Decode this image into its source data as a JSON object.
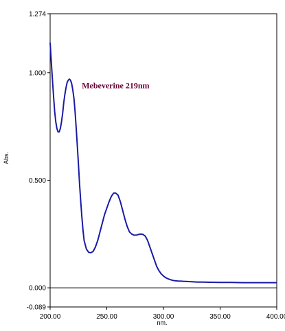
{
  "chart_data": {
    "type": "line",
    "title": "",
    "xlabel": "nm.",
    "ylabel": "Abs.",
    "xlim": [
      200.0,
      400.0
    ],
    "ylim": [
      -0.089,
      1.274
    ],
    "x_tick_labels": [
      "200.00",
      "250.00",
      "300.00",
      "350.00",
      "400.00"
    ],
    "x_ticks": [
      200,
      250,
      300,
      350,
      400
    ],
    "y_tick_labels": [
      "1.274",
      "1.000",
      "0.500",
      "0.000",
      "-0.089"
    ],
    "y_ticks": [
      1.274,
      1.0,
      0.5,
      0.0,
      -0.089
    ],
    "grid": false,
    "baseline": 0.0,
    "line_color": "#1a1aa6",
    "annotation": {
      "text": "Mebeverine 219nm",
      "x": 228,
      "y": 0.94,
      "color": "#660033"
    },
    "series": [
      {
        "name": "",
        "x": [
          200,
          201,
          202,
          203,
          204,
          205,
          206,
          207,
          208,
          209,
          210,
          211,
          212,
          213,
          214,
          215,
          216,
          217,
          218,
          219,
          220,
          221,
          222,
          223,
          224,
          225,
          226,
          227,
          228,
          229,
          230,
          232,
          234,
          236,
          238,
          240,
          242,
          244,
          246,
          248,
          250,
          252,
          254,
          256,
          258,
          260,
          262,
          264,
          266,
          268,
          270,
          272,
          274,
          276,
          278,
          280,
          282,
          284,
          286,
          288,
          290,
          292,
          294,
          296,
          298,
          300,
          302,
          304,
          306,
          308,
          310,
          312,
          314,
          316,
          318,
          320,
          322,
          325,
          330,
          335,
          340,
          350,
          360,
          370,
          380,
          390,
          400
        ],
        "values": [
          1.14,
          1.05,
          0.97,
          0.89,
          0.82,
          0.77,
          0.74,
          0.725,
          0.725,
          0.74,
          0.77,
          0.81,
          0.86,
          0.9,
          0.93,
          0.955,
          0.965,
          0.97,
          0.965,
          0.95,
          0.92,
          0.88,
          0.82,
          0.74,
          0.66,
          0.57,
          0.48,
          0.4,
          0.33,
          0.27,
          0.22,
          0.18,
          0.165,
          0.163,
          0.17,
          0.19,
          0.22,
          0.26,
          0.3,
          0.34,
          0.37,
          0.4,
          0.425,
          0.44,
          0.44,
          0.43,
          0.4,
          0.36,
          0.32,
          0.285,
          0.26,
          0.25,
          0.245,
          0.245,
          0.248,
          0.25,
          0.248,
          0.24,
          0.22,
          0.19,
          0.16,
          0.13,
          0.1,
          0.08,
          0.065,
          0.055,
          0.047,
          0.042,
          0.038,
          0.035,
          0.033,
          0.032,
          0.031,
          0.031,
          0.03,
          0.03,
          0.029,
          0.028,
          0.027,
          0.027,
          0.026,
          0.025,
          0.025,
          0.024,
          0.024,
          0.024,
          0.024
        ]
      }
    ]
  }
}
